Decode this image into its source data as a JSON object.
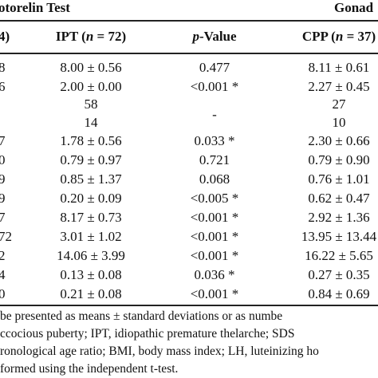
{
  "group_header": {
    "left": "otorelin Test",
    "right": "Gonad"
  },
  "columns": {
    "c0": "4)",
    "c1_pre": "IPT (",
    "c1_n": "n",
    "c1_post": " = 72)",
    "c2_p": "p",
    "c2_post": "-Value",
    "c3_pre": "CPP (",
    "c3_n": "n",
    "c3_post": " = 37)"
  },
  "rows": [
    {
      "c0": "8",
      "ipt": "8.00 ± 0.56",
      "pval": "0.477",
      "cpp": "8.11 ± 0.61"
    },
    {
      "c0": "6",
      "ipt": "2.00 ± 0.00",
      "pval": "<0.001 *",
      "cpp": "2.27 ± 0.45"
    },
    {
      "c0": "",
      "ipt": "58",
      "pval": "",
      "cpp": "27"
    },
    {
      "c0": "",
      "ipt": "14",
      "pval": "-",
      "cpp": "10"
    },
    {
      "c0": "7",
      "ipt": "1.78 ± 0.56",
      "pval": "0.033 *",
      "cpp": "2.30 ± 0.66"
    },
    {
      "c0": "0",
      "ipt": "0.79 ± 0.97",
      "pval": "0.721",
      "cpp": "0.79 ± 0.90"
    },
    {
      "c0": "9",
      "ipt": "0.85 ± 1.37",
      "pval": "0.068",
      "cpp": "0.76 ± 1.01"
    },
    {
      "c0": "9",
      "ipt": "0.20 ± 0.09",
      "pval": "<0.005 *",
      "cpp": "0.62 ± 0.47"
    },
    {
      "c0": "7",
      "ipt": "8.17 ± 0.73",
      "pval": "<0.001 *",
      "cpp": "2.92 ± 1.36"
    },
    {
      "c0": "72",
      "ipt": "3.01 ± 1.02",
      "pval": "<0.001 *",
      "cpp": "13.95 ± 13.44"
    },
    {
      "c0": "2",
      "ipt": "14.06 ± 3.99",
      "pval": "<0.001 *",
      "cpp": "16.22 ± 5.65"
    },
    {
      "c0": "4",
      "ipt": "0.13 ± 0.08",
      "pval": "0.036 *",
      "cpp": "0.27 ± 0.35"
    },
    {
      "c0": "0",
      "ipt": "0.21 ± 0.08",
      "pval": "<0.001 *",
      "cpp": "0.84 ± 0.69"
    }
  ],
  "footnotes": [
    "be presented as means ± standard deviations or as numbe",
    "ccocious puberty; IPT, idiopathic premature thelarche; SDS",
    "ronological age ratio; BMI, body mass index; LH, luteinizing ho",
    "formed using the independent t-test."
  ]
}
